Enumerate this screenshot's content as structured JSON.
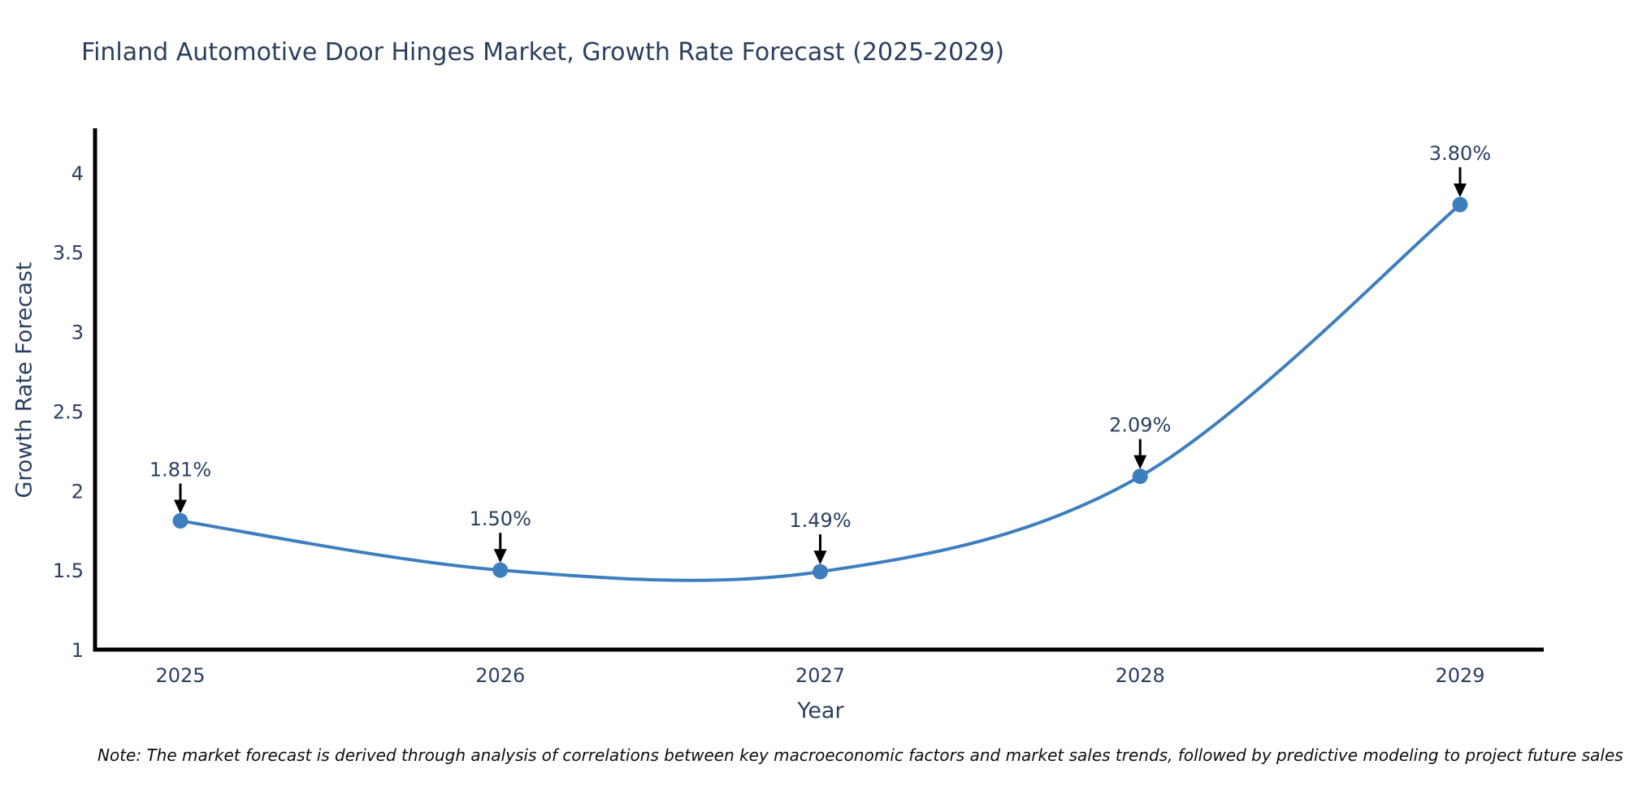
{
  "title": "Finland Automotive Door Hinges Market, Growth Rate Forecast (2025-2029)",
  "note": "Note: The market forecast is derived through analysis of correlations between key macroeconomic factors and market sales trends, followed by predictive modeling to project future sales",
  "chart_data": {
    "type": "line",
    "line_shape": "spline",
    "title": "Finland Automotive Door Hinges Market, Growth Rate Forecast (2025-2029)",
    "xlabel": "Year",
    "ylabel": "Growth Rate Forecast",
    "categories": [
      "2025",
      "2026",
      "2027",
      "2028",
      "2029"
    ],
    "values": [
      1.81,
      1.5,
      1.49,
      2.09,
      3.8
    ],
    "point_labels": [
      "1.81%",
      "1.50%",
      "1.49%",
      "2.09%",
      "3.80%"
    ],
    "ylim": [
      1,
      4.28
    ],
    "yticks": [
      1,
      1.5,
      2,
      2.5,
      3,
      3.5,
      4
    ],
    "grid": false,
    "legend": "none",
    "annotation_style": "value-above-with-down-arrow",
    "colors": {
      "line": "#3d7ebf",
      "marker": "#3d7ebf",
      "arrow": "#000000",
      "text": "#2a3f5f",
      "axis": "#000000",
      "note_text": "#0d0d0d",
      "background": "#ffffff"
    }
  }
}
